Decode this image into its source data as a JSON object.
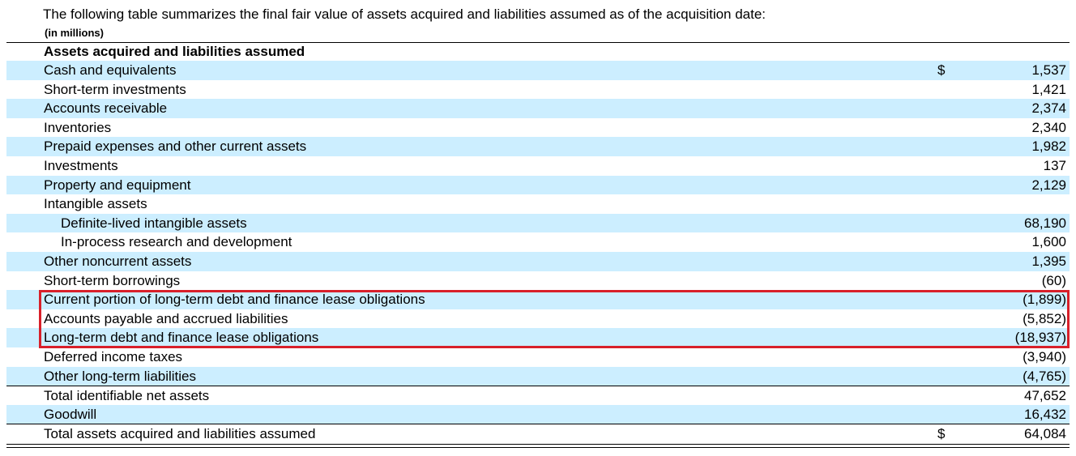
{
  "intro": "The following table summarizes the final fair value of assets acquired and liabilities assumed as of the acquisition date:",
  "units": "(in millions)",
  "heading": "Assets acquired and liabilities assumed",
  "rows": [
    {
      "label": "Cash and equivalents",
      "dollar": "$",
      "value": "1,537"
    },
    {
      "label": "Short-term investments",
      "dollar": "",
      "value": "1,421"
    },
    {
      "label": "Accounts receivable",
      "dollar": "",
      "value": "2,374"
    },
    {
      "label": "Inventories",
      "dollar": "",
      "value": "2,340"
    },
    {
      "label": "Prepaid expenses and other current assets",
      "dollar": "",
      "value": "1,982"
    },
    {
      "label": "Investments",
      "dollar": "",
      "value": "137"
    },
    {
      "label": "Property and equipment",
      "dollar": "",
      "value": "2,129"
    },
    {
      "label": "Intangible assets",
      "dollar": "",
      "value": ""
    },
    {
      "label": "Definite-lived intangible assets",
      "dollar": "",
      "value": "68,190"
    },
    {
      "label": "In-process research and development",
      "dollar": "",
      "value": "1,600"
    },
    {
      "label": "Other noncurrent assets",
      "dollar": "",
      "value": "1,395"
    },
    {
      "label": "Short-term borrowings",
      "dollar": "",
      "value": "(60)"
    },
    {
      "label": "Current portion of long-term debt and finance lease obligations",
      "dollar": "",
      "value": "(1,899)"
    },
    {
      "label": "Accounts payable and accrued liabilities",
      "dollar": "",
      "value": "(5,852)"
    },
    {
      "label": "Long-term debt and finance lease obligations",
      "dollar": "",
      "value": "(18,937)"
    },
    {
      "label": "Deferred income taxes",
      "dollar": "",
      "value": "(3,940)"
    },
    {
      "label": "Other long-term liabilities",
      "dollar": "",
      "value": "(4,765)"
    },
    {
      "label": "Total identifiable net assets",
      "dollar": "",
      "value": "47,652"
    },
    {
      "label": "Goodwill",
      "dollar": "",
      "value": "16,432"
    },
    {
      "label": "Total assets acquired and liabilities assumed",
      "dollar": "$",
      "value": "64,084"
    }
  ],
  "highlight_color": "#d8202a",
  "shade_color": "#cceeff"
}
